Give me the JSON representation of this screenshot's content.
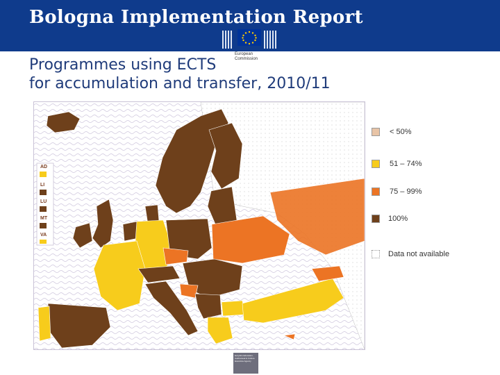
{
  "header": {
    "title": "Bologna Implementation Report"
  },
  "logo": {
    "text": "European Commission"
  },
  "subtitle": {
    "line1": "Programmes using ECTS",
    "line2": "for accumulation and transfer, 2010/11"
  },
  "legend": [
    {
      "label": "< 50%",
      "color": "#e8c4a6"
    },
    {
      "label": "51 – 74%",
      "color": "#f7cc1c"
    },
    {
      "label": "75 – 99%",
      "color": "#ec7424"
    },
    {
      "label": "100%",
      "color": "#6e401b"
    },
    {
      "label": "Data not available",
      "color": "#ffffff"
    }
  ],
  "insets": [
    "AD",
    "LI",
    "LU",
    "MT",
    "VA"
  ],
  "footer": {
    "text": "Eurydice Education, Audiovisual & Culture Executive Agency"
  }
}
